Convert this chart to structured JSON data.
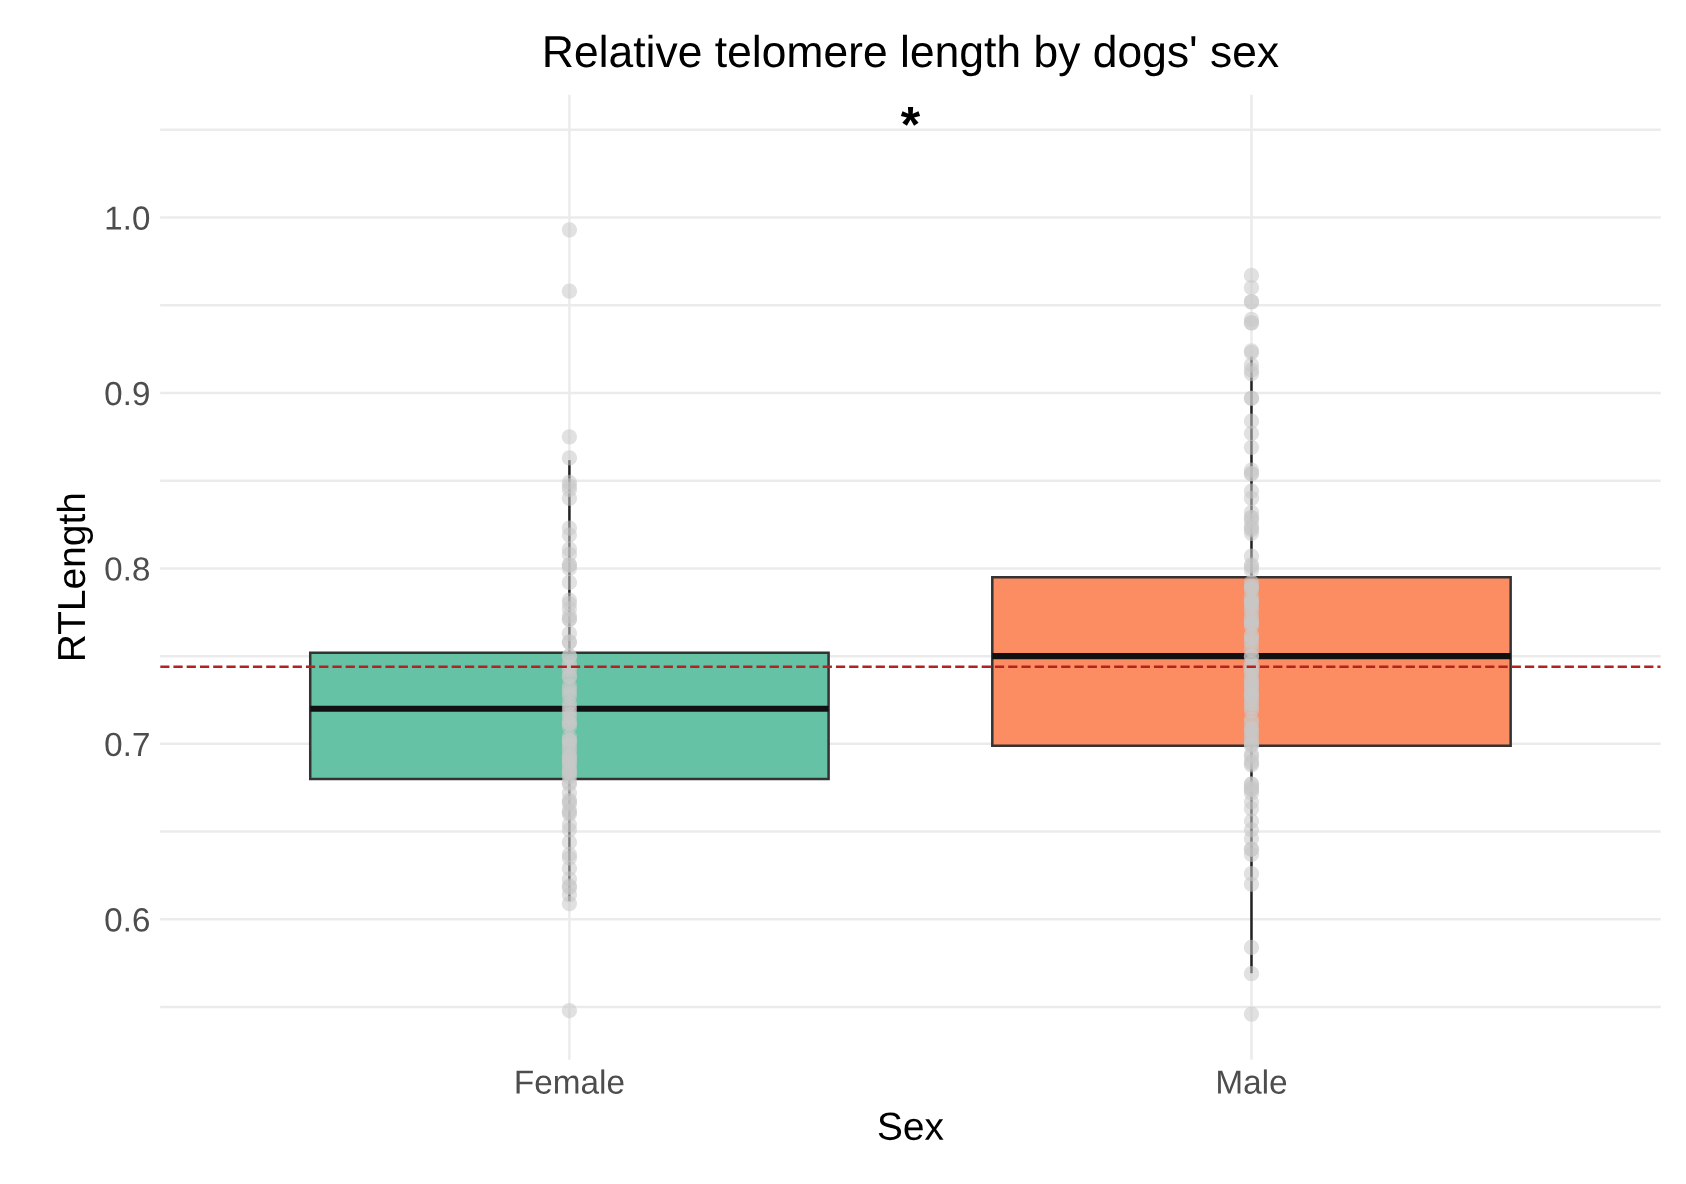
{
  "chart_data": {
    "type": "box",
    "title": "Relative telomere length by dogs' sex",
    "xlabel": "Sex",
    "ylabel": "RTLength",
    "categories": [
      "Female",
      "Male"
    ],
    "colors": [
      "#66c2a5",
      "#fc8d62"
    ],
    "boxes": [
      {
        "low": 0.611,
        "q1": 0.68,
        "median": 0.72,
        "q3": 0.752,
        "high": 0.861
      },
      {
        "low": 0.57,
        "q1": 0.699,
        "median": 0.75,
        "q3": 0.795,
        "high": 0.92
      }
    ],
    "series": [
      {
        "type": "scatter",
        "color": "#c8c8c8",
        "x": [
          "Female",
          "Female",
          "Female",
          "Female",
          "Female",
          "Female",
          "Female",
          "Female",
          "Female",
          "Female",
          "Female",
          "Female",
          "Female",
          "Female",
          "Female",
          "Female",
          "Female",
          "Female",
          "Female",
          "Female",
          "Female",
          "Female",
          "Female",
          "Female",
          "Female",
          "Female",
          "Female",
          "Female",
          "Female",
          "Female",
          "Female",
          "Female",
          "Female",
          "Female",
          "Female",
          "Female",
          "Female",
          "Female",
          "Female",
          "Female",
          "Female",
          "Female",
          "Female",
          "Female",
          "Female",
          "Female",
          "Female",
          "Female",
          "Female",
          "Female",
          "Female",
          "Female",
          "Female",
          "Female",
          "Female",
          "Female",
          "Female",
          "Female",
          "Female",
          "Female",
          "Female",
          "Female",
          "Female",
          "Female",
          "Female",
          "Female",
          "Female",
          "Female",
          "Female",
          "Female",
          "Female",
          "Female",
          "Female",
          "Female",
          "Female",
          "Female",
          "Female",
          "Female",
          "Female",
          "Female",
          "Female"
        ],
        "values": [
          0.993,
          0.958,
          0.875,
          0.863,
          0.849,
          0.847,
          0.845,
          0.84,
          0.823,
          0.819,
          0.811,
          0.808,
          0.802,
          0.802,
          0.8,
          0.792,
          0.782,
          0.78,
          0.777,
          0.773,
          0.771,
          0.771,
          0.763,
          0.758,
          0.758,
          0.75,
          0.75,
          0.746,
          0.744,
          0.742,
          0.739,
          0.738,
          0.733,
          0.731,
          0.729,
          0.727,
          0.723,
          0.721,
          0.719,
          0.717,
          0.715,
          0.712,
          0.712,
          0.71,
          0.704,
          0.702,
          0.702,
          0.7,
          0.698,
          0.696,
          0.693,
          0.693,
          0.691,
          0.69,
          0.689,
          0.687,
          0.685,
          0.684,
          0.683,
          0.681,
          0.678,
          0.677,
          0.672,
          0.668,
          0.667,
          0.666,
          0.662,
          0.661,
          0.66,
          0.654,
          0.651,
          0.644,
          0.637,
          0.635,
          0.629,
          0.623,
          0.619,
          0.618,
          0.614,
          0.609,
          0.548
        ]
      },
      {
        "type": "scatter",
        "color": "#c8c8c8",
        "x": [
          "Male",
          "Male",
          "Male",
          "Male",
          "Male",
          "Male",
          "Male",
          "Male",
          "Male",
          "Male",
          "Male",
          "Male",
          "Male",
          "Male",
          "Male",
          "Male",
          "Male",
          "Male",
          "Male",
          "Male",
          "Male",
          "Male",
          "Male",
          "Male",
          "Male",
          "Male",
          "Male",
          "Male",
          "Male",
          "Male",
          "Male",
          "Male",
          "Male",
          "Male",
          "Male",
          "Male",
          "Male",
          "Male",
          "Male",
          "Male",
          "Male",
          "Male",
          "Male",
          "Male",
          "Male",
          "Male",
          "Male",
          "Male",
          "Male",
          "Male",
          "Male",
          "Male",
          "Male",
          "Male",
          "Male",
          "Male",
          "Male",
          "Male",
          "Male",
          "Male",
          "Male",
          "Male",
          "Male",
          "Male",
          "Male",
          "Male",
          "Male",
          "Male",
          "Male",
          "Male",
          "Male",
          "Male",
          "Male",
          "Male",
          "Male",
          "Male",
          "Male",
          "Male",
          "Male",
          "Male",
          "Male",
          "Male",
          "Male",
          "Male",
          "Male",
          "Male",
          "Male",
          "Male",
          "Male",
          "Male",
          "Male",
          "Male",
          "Male",
          "Male",
          "Male",
          "Male",
          "Male",
          "Male",
          "Male",
          "Male",
          "Male",
          "Male",
          "Male",
          "Male",
          "Male",
          "Male"
        ],
        "values": [
          0.967,
          0.96,
          0.952,
          0.952,
          0.942,
          0.94,
          0.94,
          0.924,
          0.923,
          0.916,
          0.913,
          0.911,
          0.897,
          0.897,
          0.884,
          0.877,
          0.869,
          0.856,
          0.854,
          0.854,
          0.844,
          0.84,
          0.832,
          0.829,
          0.829,
          0.827,
          0.824,
          0.823,
          0.822,
          0.82,
          0.807,
          0.802,
          0.801,
          0.799,
          0.792,
          0.79,
          0.789,
          0.788,
          0.784,
          0.782,
          0.781,
          0.78,
          0.778,
          0.776,
          0.773,
          0.771,
          0.769,
          0.769,
          0.767,
          0.762,
          0.761,
          0.759,
          0.757,
          0.754,
          0.75,
          0.75,
          0.746,
          0.744,
          0.742,
          0.741,
          0.738,
          0.736,
          0.734,
          0.733,
          0.731,
          0.729,
          0.728,
          0.727,
          0.725,
          0.723,
          0.721,
          0.719,
          0.714,
          0.712,
          0.709,
          0.708,
          0.706,
          0.704,
          0.702,
          0.7,
          0.7,
          0.699,
          0.694,
          0.693,
          0.69,
          0.689,
          0.688,
          0.677,
          0.677,
          0.675,
          0.674,
          0.674,
          0.672,
          0.667,
          0.663,
          0.656,
          0.651,
          0.646,
          0.64,
          0.64,
          0.637,
          0.626,
          0.62,
          0.584,
          0.569,
          0.546
        ]
      }
    ],
    "ylim": [
      0.52,
      1.07
    ],
    "yticks": [
      {
        "value": 0.55,
        "label": null
      },
      0.6,
      {
        "value": 0.65,
        "label": null
      },
      0.7,
      {
        "value": 0.75,
        "label": null
      },
      0.8,
      {
        "value": 0.85,
        "label": null
      },
      0.9,
      {
        "value": 0.95,
        "label": null
      },
      {
        "value": 1.0,
        "label": "1.0"
      },
      {
        "value": 1.05,
        "label": null
      }
    ],
    "ref_lines": [
      {
        "axis": "y",
        "value": 0.744,
        "color": "#b22222",
        "line_style": "dashed"
      }
    ],
    "annotations": [
      "*"
    ],
    "grid": true,
    "marker": "circle"
  }
}
